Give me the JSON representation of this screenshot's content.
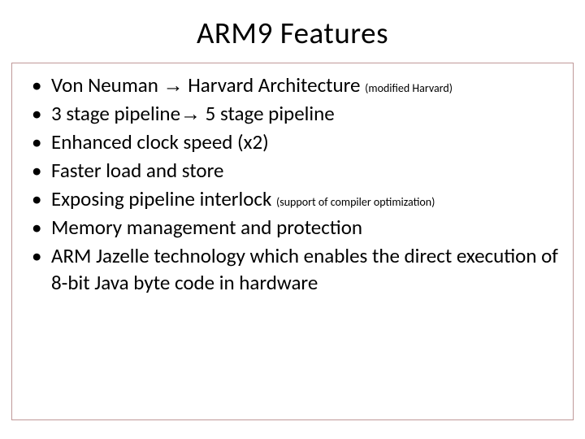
{
  "slide": {
    "title": "ARM9  Features",
    "border_color": "#c09998",
    "background_color": "#ffffff",
    "text_color": "#000000",
    "title_fontsize": 37,
    "body_fontsize": 25,
    "sub_fontsize": 14,
    "bullets": [
      {
        "pre": "Von Neuman ",
        "arrow": "→",
        "post": " Harvard Architecture ",
        "sub": "(modified Harvard)"
      },
      {
        "pre": "3 stage pipeline",
        "arrow": "→",
        "post": " 5 stage pipeline",
        "sub": ""
      },
      {
        "pre": "Enhanced clock speed (x2)",
        "arrow": "",
        "post": "",
        "sub": ""
      },
      {
        "pre": "Faster load and store",
        "arrow": "",
        "post": "",
        "sub": ""
      },
      {
        "pre": "Exposing pipeline interlock ",
        "arrow": "",
        "post": "",
        "sub": "(support of compiler optimization)"
      },
      {
        "pre": "Memory management and protection",
        "arrow": "",
        "post": "",
        "sub": ""
      },
      {
        "pre": "ARM Jazelle technology which enables the direct execution of 8-bit Java  byte code in hardware",
        "arrow": "",
        "post": "",
        "sub": ""
      }
    ]
  }
}
